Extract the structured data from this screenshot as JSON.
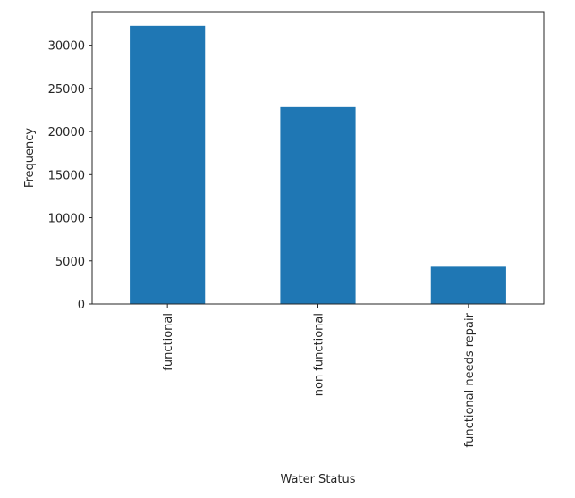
{
  "chart_data": {
    "type": "bar",
    "categories": [
      "functional",
      "non functional",
      "functional needs repair"
    ],
    "values": [
      32259,
      22824,
      4317
    ],
    "xlabel": "Water Status",
    "ylabel": "Frequency",
    "ylim": [
      0,
      33900
    ],
    "yticks": [
      0,
      5000,
      10000,
      15000,
      20000,
      25000,
      30000
    ],
    "bar_color": "#1f77b4",
    "grid": false,
    "legend": false
  }
}
